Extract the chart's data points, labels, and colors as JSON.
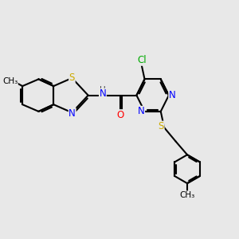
{
  "bg_color": "#e8e8e8",
  "atom_colors": {
    "C": "#000000",
    "N": "#0000ff",
    "O": "#ff0000",
    "S": "#ccaa00",
    "Cl": "#00aa00",
    "H": "#444444"
  },
  "bond_color": "#000000",
  "bond_width": 1.5,
  "font_size": 8.5,
  "figsize": [
    3.0,
    3.0
  ],
  "dpi": 100
}
